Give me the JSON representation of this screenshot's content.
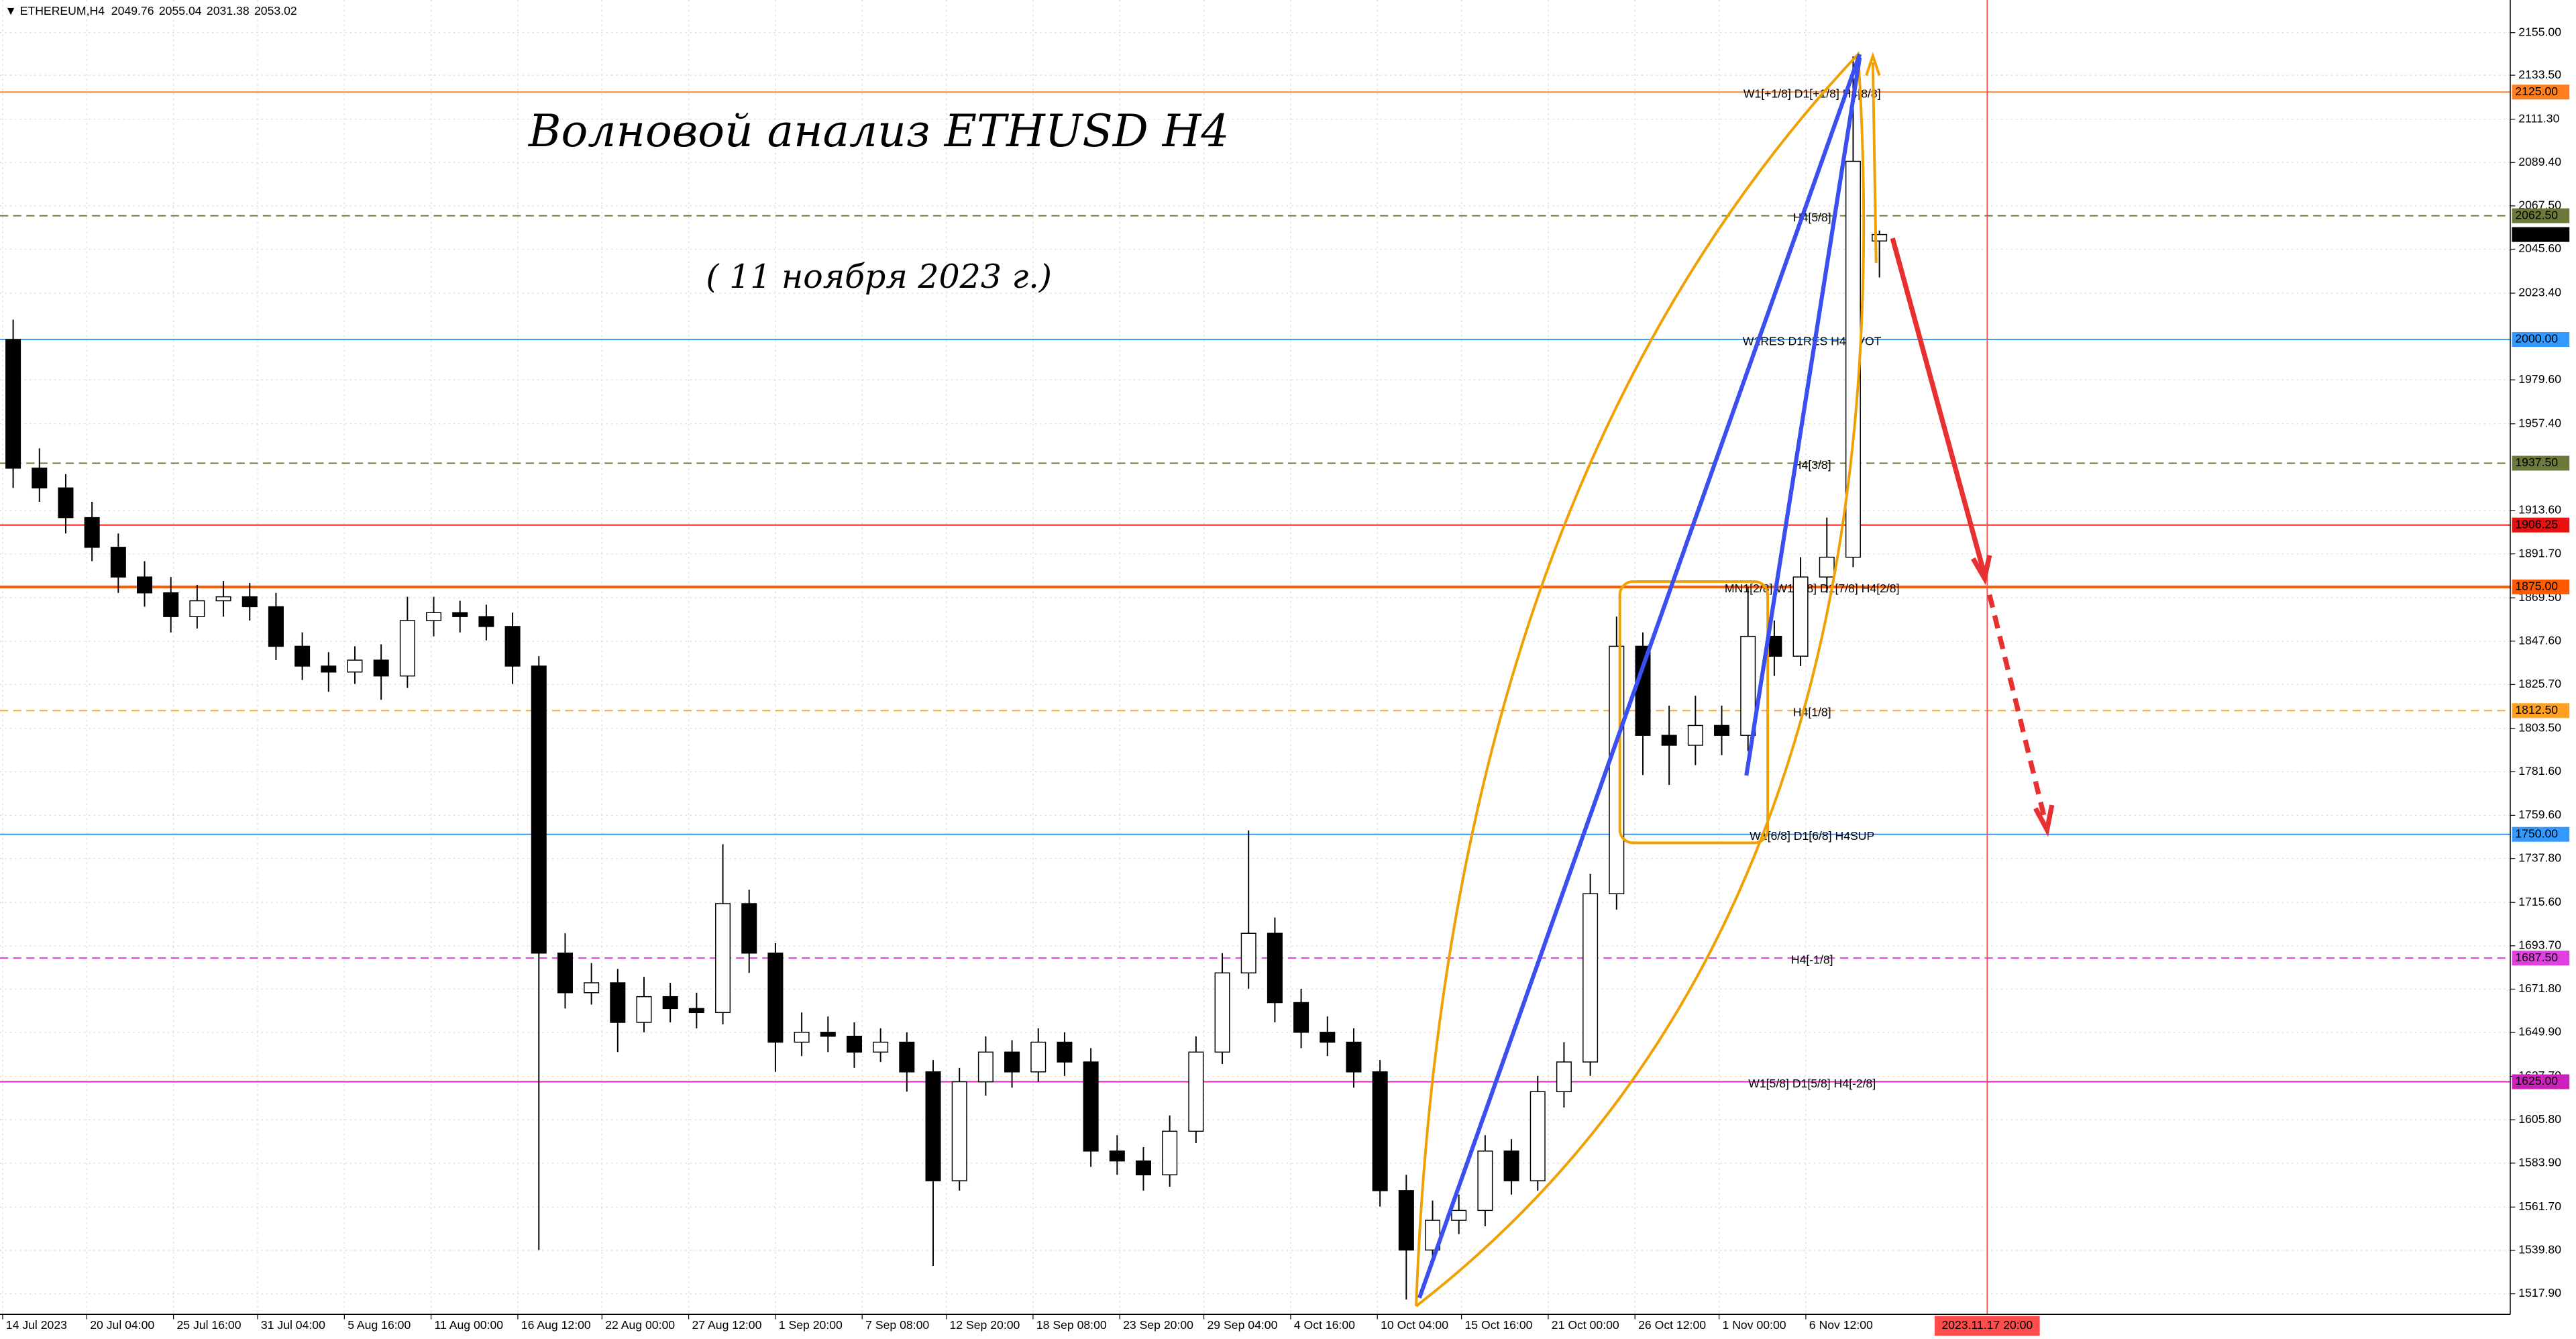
{
  "chart_data": {
    "type": "candlestick",
    "symbol": "ETHEREUM,H4",
    "title": "Волновой анализ ETHUSD H4",
    "subtitle": "( 11 ноября 2023 г.)",
    "open": [
      2000,
      1935,
      1925,
      1910,
      1895,
      1880,
      1872,
      1860,
      1868,
      1870,
      1865,
      1845,
      1835,
      1832,
      1838,
      1830,
      1858,
      1862,
      1860,
      1855,
      1835,
      1690,
      1670,
      1675,
      1655,
      1668,
      1662,
      1660,
      1715,
      1690,
      1645,
      1650,
      1648,
      1640,
      1645,
      1630,
      1575,
      1625,
      1640,
      1630,
      1645,
      1635,
      1590,
      1585,
      1578,
      1600,
      1640,
      1680,
      1700,
      1665,
      1650,
      1645,
      1630,
      1570,
      1540,
      1555,
      1560,
      1590,
      1575,
      1620,
      1635,
      1720,
      1845,
      1800,
      1795,
      1805,
      1800,
      1850,
      1840,
      1880,
      1890,
      2049.76
    ],
    "high": [
      2010,
      1945,
      1932,
      1918,
      1902,
      1888,
      1880,
      1876,
      1878,
      1877,
      1872,
      1852,
      1842,
      1845,
      1846,
      1870,
      1870,
      1868,
      1866,
      1862,
      1840,
      1700,
      1685,
      1682,
      1678,
      1675,
      1670,
      1745,
      1722,
      1695,
      1660,
      1658,
      1655,
      1652,
      1650,
      1636,
      1632,
      1648,
      1646,
      1652,
      1650,
      1642,
      1598,
      1592,
      1608,
      1648,
      1690,
      1752,
      1708,
      1672,
      1658,
      1652,
      1636,
      1578,
      1565,
      1568,
      1598,
      1596,
      1628,
      1645,
      1730,
      1860,
      1852,
      1815,
      1820,
      1815,
      1875,
      1858,
      1890,
      1910,
      2143,
      2055.04
    ],
    "low": [
      1925,
      1918,
      1902,
      1888,
      1872,
      1865,
      1852,
      1854,
      1860,
      1858,
      1838,
      1828,
      1822,
      1826,
      1818,
      1824,
      1850,
      1852,
      1848,
      1826,
      1540,
      1662,
      1664,
      1640,
      1650,
      1655,
      1652,
      1654,
      1680,
      1630,
      1638,
      1640,
      1632,
      1635,
      1620,
      1532,
      1570,
      1618,
      1622,
      1625,
      1628,
      1582,
      1578,
      1570,
      1572,
      1594,
      1634,
      1672,
      1655,
      1642,
      1638,
      1622,
      1562,
      1515,
      1532,
      1548,
      1552,
      1568,
      1570,
      1612,
      1628,
      1712,
      1780,
      1775,
      1785,
      1790,
      1792,
      1830,
      1835,
      1872,
      1885,
      2031.38
    ],
    "close": [
      1935,
      1925,
      1910,
      1895,
      1880,
      1872,
      1860,
      1868,
      1870,
      1865,
      1845,
      1835,
      1832,
      1838,
      1830,
      1858,
      1862,
      1860,
      1855,
      1835,
      1690,
      1670,
      1675,
      1655,
      1668,
      1662,
      1660,
      1715,
      1690,
      1645,
      1650,
      1648,
      1640,
      1645,
      1630,
      1575,
      1625,
      1640,
      1630,
      1645,
      1635,
      1590,
      1585,
      1578,
      1600,
      1640,
      1680,
      1700,
      1665,
      1650,
      1645,
      1630,
      1570,
      1540,
      1555,
      1560,
      1590,
      1575,
      1620,
      1635,
      1720,
      1845,
      1800,
      1795,
      1805,
      1800,
      1850,
      1840,
      1880,
      1890,
      2090,
      2053.02
    ],
    "up_color": "#ffffff",
    "down_color": "#000000",
    "xlim": [
      0,
      95.5
    ],
    "ylim": [
      1507.5,
      2171.5
    ],
    "grid": true,
    "yticks": [
      {
        "value": 2155,
        "label": "2155.00"
      },
      {
        "value": 2133.5,
        "label": "2133.50"
      },
      {
        "value": 2111.3,
        "label": "2111.30"
      },
      {
        "value": 2089.4,
        "label": "2089.40"
      },
      {
        "value": 2067.5,
        "label": "2067.50"
      },
      {
        "value": 2045.6,
        "label": "2045.60"
      },
      {
        "value": 2023.4,
        "label": "2023.40"
      },
      {
        "value": 1979.6,
        "label": "1979.60"
      },
      {
        "value": 1957.4,
        "label": "1957.40"
      },
      {
        "value": 1913.6,
        "label": "1913.60"
      },
      {
        "value": 1891.7,
        "label": "1891.70"
      },
      {
        "value": 1869.5,
        "label": "1869.50"
      },
      {
        "value": 1847.6,
        "label": "1847.60"
      },
      {
        "value": 1825.7,
        "label": "1825.70"
      },
      {
        "value": 1803.5,
        "label": "1803.50"
      },
      {
        "value": 1781.6,
        "label": "1781.60"
      },
      {
        "value": 1759.6,
        "label": "1759.60"
      },
      {
        "value": 1737.8,
        "label": "1737.80"
      },
      {
        "value": 1715.6,
        "label": "1715.60"
      },
      {
        "value": 1693.7,
        "label": "1693.70"
      },
      {
        "value": 1671.8,
        "label": "1671.80"
      },
      {
        "value": 1649.9,
        "label": "1649.90"
      },
      {
        "value": 1627.7,
        "label": "1627.70"
      },
      {
        "value": 1605.8,
        "label": "1605.80"
      },
      {
        "value": 1583.9,
        "label": "1583.90"
      },
      {
        "value": 1561.7,
        "label": "1561.70"
      },
      {
        "value": 1539.8,
        "label": "1539.80"
      },
      {
        "value": 1517.9,
        "label": "1517.90"
      }
    ],
    "xticks": [
      {
        "value": 0.1,
        "label": "14 Jul 2023"
      },
      {
        "value": 3.3,
        "label": "20 Jul 04:00"
      },
      {
        "value": 6.6,
        "label": "25 Jul 16:00"
      },
      {
        "value": 9.8,
        "label": "31 Jul 04:00"
      },
      {
        "value": 13.1,
        "label": "5 Aug 16:00"
      },
      {
        "value": 16.4,
        "label": "11 Aug 00:00"
      },
      {
        "value": 19.7,
        "label": "16 Aug 12:00"
      },
      {
        "value": 22.9,
        "label": "22 Aug 00:00"
      },
      {
        "value": 26.2,
        "label": "27 Aug 12:00"
      },
      {
        "value": 29.5,
        "label": "1 Sep 20:00"
      },
      {
        "value": 32.8,
        "label": "7 Sep 08:00"
      },
      {
        "value": 36,
        "label": "12 Sep 20:00"
      },
      {
        "value": 39.3,
        "label": "18 Sep 08:00"
      },
      {
        "value": 42.6,
        "label": "23 Sep 20:00"
      },
      {
        "value": 45.8,
        "label": "29 Sep 04:00"
      },
      {
        "value": 49.1,
        "label": "4 Oct 16:00"
      },
      {
        "value": 52.4,
        "label": "10 Oct 04:00"
      },
      {
        "value": 55.6,
        "label": "15 Oct 16:00"
      },
      {
        "value": 58.9,
        "label": "21 Oct 00:00"
      },
      {
        "value": 62.2,
        "label": "26 Oct 12:00"
      },
      {
        "value": 65.4,
        "label": "1 Nov 00:00"
      },
      {
        "value": 68.7,
        "label": "6 Nov 12:00"
      }
    ],
    "time_marker": {
      "value": 75.6,
      "label": "2023.11.17 20:00",
      "color": "#ff4d4d"
    },
    "current_price": {
      "value": 2053.02,
      "label": "2053.02",
      "color": "#000000"
    },
    "levels": [
      {
        "value": 2125,
        "label": "2125.00",
        "note": "W1[+1/8] D1[+1/8] H4[8/8]",
        "color": "#ff7f1f",
        "dashed": false,
        "width": 1
      },
      {
        "value": 2062.5,
        "label": "2062.50",
        "note": "H4[5/8]",
        "color": "#6b7a3a",
        "dashed": true,
        "width": 1
      },
      {
        "value": 2000,
        "label": "2000.00",
        "note": "W1RES D1RES H4PIVOT",
        "color": "#3399ff",
        "dashed": false,
        "width": 1
      },
      {
        "value": 1937.5,
        "label": "1937.50",
        "note": "H4[3/8]",
        "color": "#6b7a3a",
        "dashed": true,
        "width": 1
      },
      {
        "value": 1906.25,
        "label": "1906.25",
        "color": "#e81010",
        "dashed": false,
        "width": 1
      },
      {
        "value": 1875,
        "label": "1875.00",
        "note": "MN1[2/8] W1[7/8] D1[7/8] H4[2/8]",
        "color": "#ff5a00",
        "dashed": false,
        "width": 2
      },
      {
        "value": 1812.5,
        "label": "1812.50",
        "note": "H4[1/8]",
        "color": "#ffa020",
        "dashed": true,
        "width": 1
      },
      {
        "value": 1750,
        "label": "1750.00",
        "note": "W1[6/8] D1[6/8] H4SUP",
        "color": "#3399ff",
        "dashed": false,
        "width": 1
      },
      {
        "value": 1687.5,
        "label": "1687.50",
        "note": "H4[-1/8]",
        "color": "#e040e0",
        "dashed": true,
        "width": 1
      },
      {
        "value": 1625,
        "label": "1625.00",
        "note": "W1[5/8] D1[5/8] H4[-2/8]",
        "color": "#cc22bb",
        "dashed": false,
        "width": 1
      }
    ]
  }
}
